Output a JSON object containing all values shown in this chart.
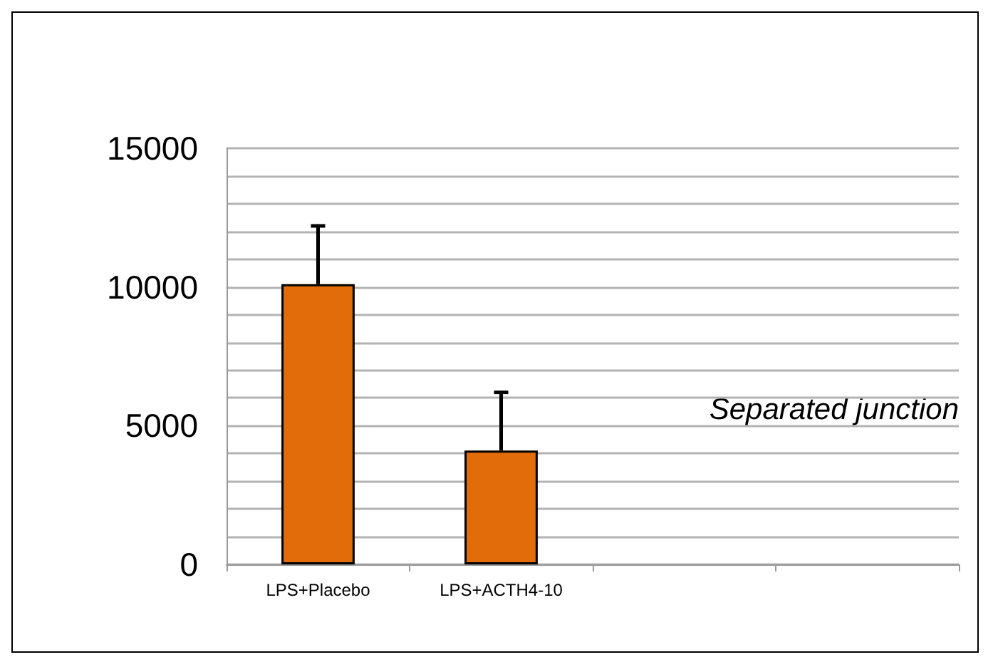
{
  "chart_data": {
    "type": "bar",
    "categories": [
      "LPS+Placebo",
      "LPS+ACTH4-10",
      null,
      null
    ],
    "values": [
      10100,
      4100,
      null,
      null
    ],
    "errors": [
      [
        10100,
        12200
      ],
      [
        4100,
        6200
      ],
      null,
      null
    ],
    "color": "#e36c0a",
    "ylim": [
      0,
      15000
    ],
    "yticks": [
      0,
      {
        "value": 1000,
        "label": null
      },
      {
        "value": 2000,
        "label": null
      },
      {
        "value": 3000,
        "label": null
      },
      {
        "value": 4000,
        "label": null
      },
      5000,
      {
        "value": 6000,
        "label": null
      },
      {
        "value": 7000,
        "label": null
      },
      {
        "value": 8000,
        "label": null
      },
      {
        "value": 9000,
        "label": null
      },
      10000,
      {
        "value": 11000,
        "label": null
      },
      {
        "value": 12000,
        "label": null
      },
      {
        "value": 13000,
        "label": null
      },
      {
        "value": 14000,
        "label": null
      },
      15000
    ],
    "grid": "y",
    "annotations": [
      "Separated junction"
    ]
  }
}
